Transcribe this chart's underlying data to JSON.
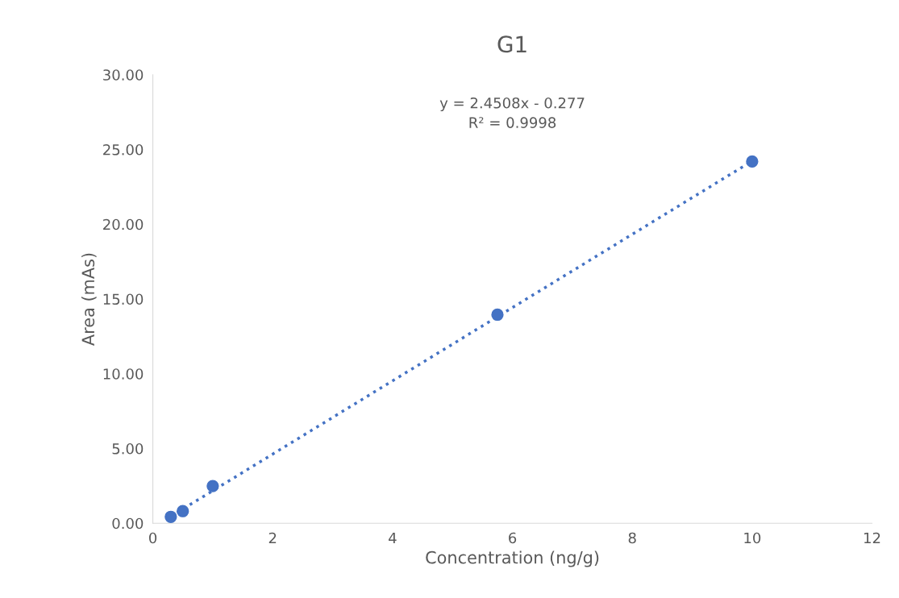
{
  "chart_data": {
    "type": "scatter",
    "title": "G1",
    "xlabel": "Concentration (ng/g)",
    "ylabel": "Area (mAs)",
    "series": [
      {
        "color": "#4472c4",
        "marker": "circle",
        "x": [
          0.3,
          0.5,
          1,
          5.75,
          10
        ],
        "values": [
          0.43,
          0.81,
          2.49,
          13.95,
          24.2
        ]
      },
      {
        "type": "line",
        "color": "#4472c4",
        "marker": "none",
        "line_style": "dotted",
        "x": [
          0.3,
          10
        ],
        "values": [
          0.46,
          24.23
        ]
      }
    ],
    "annotations": [
      "y = 2.4508x - 0.277",
      "R² = 0.9998"
    ],
    "xlim": [
      0,
      12
    ],
    "xticks": [
      0,
      2,
      4,
      6,
      8,
      10,
      12
    ],
    "ylim": [
      0,
      30
    ],
    "yticks": [
      {
        "value": 0,
        "label": "0.00"
      },
      {
        "value": 5,
        "label": "5.00"
      },
      {
        "value": 10,
        "label": "10.00"
      },
      {
        "value": 15,
        "label": "15.00"
      },
      {
        "value": 20,
        "label": "20.00"
      },
      {
        "value": 25,
        "label": "25.00"
      },
      {
        "value": 30,
        "label": "30.00"
      }
    ],
    "grid": false,
    "legend": false
  }
}
